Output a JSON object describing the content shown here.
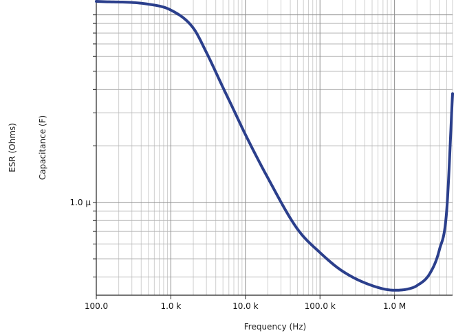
{
  "chart_data": {
    "type": "line",
    "title": "",
    "xlabel": "Frequency (Hz)",
    "ylabels": [
      "ESR (Ohms)",
      "Capacitance (F)"
    ],
    "x_scale": "log",
    "y_scale": "log",
    "xlim": [
      100,
      6000000
    ],
    "ylim": [
      3.2e-07,
      1.2e-05
    ],
    "grid": true,
    "legend": "none",
    "x_ticks": [
      {
        "value": 100,
        "label": "100.0"
      },
      {
        "value": 1000,
        "label": "1.0 k"
      },
      {
        "value": 10000,
        "label": "10.0 k"
      },
      {
        "value": 100000,
        "label": "100.0 k"
      },
      {
        "value": 1000000,
        "label": "1.0 M"
      }
    ],
    "y_ticks": [
      {
        "value": 1e-06,
        "label": "1.0 µ"
      }
    ],
    "series": [
      {
        "color": "#2b3f8c",
        "x": [
          100,
          500,
          1000,
          2000,
          3000,
          5000,
          7000,
          10000,
          20000,
          50000,
          100000,
          200000,
          500000,
          1000000,
          1500000,
          2000000,
          3000000,
          4000000,
          5000000,
          6000000
        ],
        "y": [
          1.18e-05,
          1.14e-05,
          1.06e-05,
          8.5e-06,
          6.3e-06,
          4.1e-06,
          3.1e-06,
          2.3e-06,
          1.35e-06,
          7.2e-07,
          5.4e-07,
          4.3e-07,
          3.6e-07,
          3.4e-07,
          3.45e-07,
          3.6e-07,
          4.2e-07,
          5.6e-07,
          9e-07,
          3.8e-06
        ]
      }
    ]
  }
}
